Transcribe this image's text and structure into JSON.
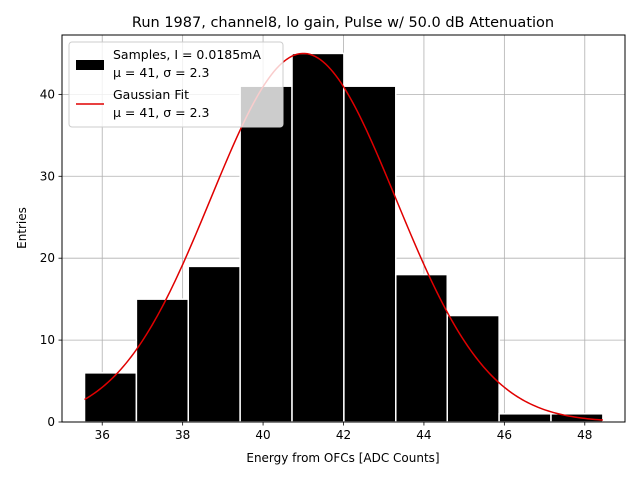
{
  "chart_data": {
    "type": "bar",
    "title": "Run 1987, channel8, lo gain, Pulse w/ 50.0 dB Attenuation",
    "xlabel": "Energy from OFCs [ADC Counts]",
    "ylabel": "Entries",
    "xlim": [
      35.0,
      49.0
    ],
    "ylim": [
      0,
      47.25
    ],
    "grid": true,
    "xticks": [
      36,
      38,
      40,
      42,
      44,
      46,
      48
    ],
    "yticks": [
      0,
      10,
      20,
      30,
      40
    ],
    "bins": {
      "edges": [
        35.56,
        36.85,
        38.14,
        39.43,
        40.72,
        42.01,
        43.3,
        44.58,
        45.87,
        47.16,
        48.45
      ],
      "counts": [
        6,
        15,
        19,
        41,
        45,
        41,
        18,
        13,
        1,
        1
      ]
    },
    "fit": {
      "amplitude": 45,
      "mu": 41,
      "sigma": 2.3,
      "x_range": [
        35.56,
        48.45
      ]
    },
    "series": [
      {
        "name": "Samples",
        "legend_line1": "Samples, I = 0.0185mA",
        "legend_line2": "μ = 41, σ = 2.3",
        "color": "#000000"
      },
      {
        "name": "Gaussian Fit",
        "legend_line1": "Gaussian Fit",
        "legend_line2": "μ = 41, σ = 2.3",
        "color": "#e00000"
      }
    ],
    "legend_position": "top-left"
  }
}
